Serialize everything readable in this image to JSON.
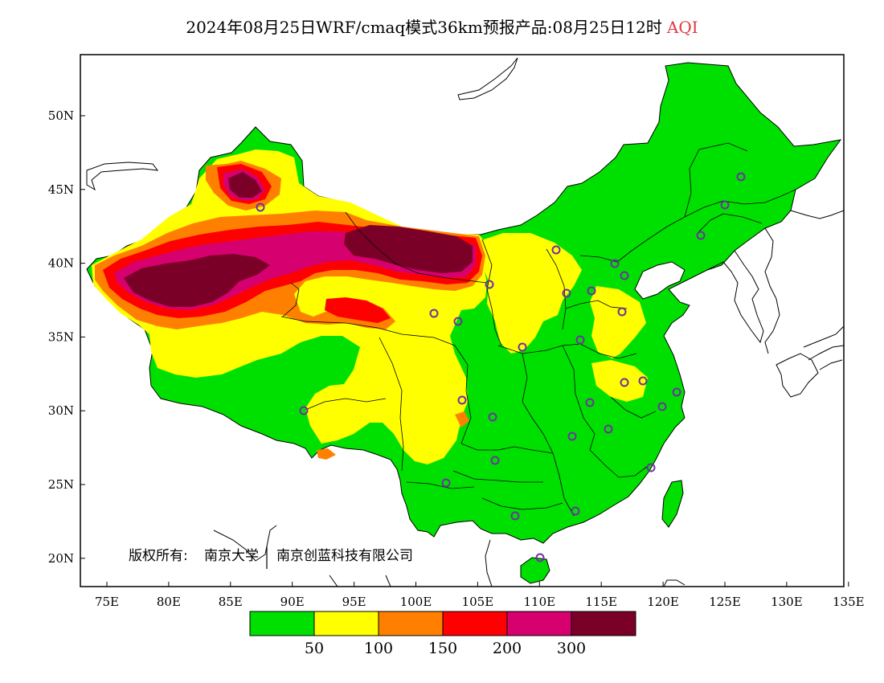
{
  "title": {
    "main": "2024年08月25日WRF/cmaq模式36km预报产品:08月25日12时",
    "variable": "AQI"
  },
  "axes": {
    "x_ticks": [
      "75E",
      "80E",
      "85E",
      "90E",
      "95E",
      "100E",
      "105E",
      "110E",
      "115E",
      "120E",
      "125E",
      "130E",
      "135E"
    ],
    "y_ticks": [
      "50N",
      "45N",
      "40N",
      "35N",
      "30N",
      "25N",
      "20N"
    ]
  },
  "credit": {
    "owner_label": "版权所有:",
    "org1": "南京大学",
    "org2": "南京创蓝科技有限公司"
  },
  "legend": {
    "colors": [
      "#00e000",
      "#ffff00",
      "#ff8000",
      "#ff0000",
      "#d6006e",
      "#7b0028"
    ],
    "labels": [
      "50",
      "100",
      "150",
      "200",
      "300"
    ]
  },
  "colors": {
    "good": "#00e000",
    "moderate": "#ffff00",
    "usg": "#ff8000",
    "unhealthy": "#ff0000",
    "very_unhealthy": "#d6006e",
    "hazardous": "#7b0028",
    "station_marker": "#7030a0"
  }
}
